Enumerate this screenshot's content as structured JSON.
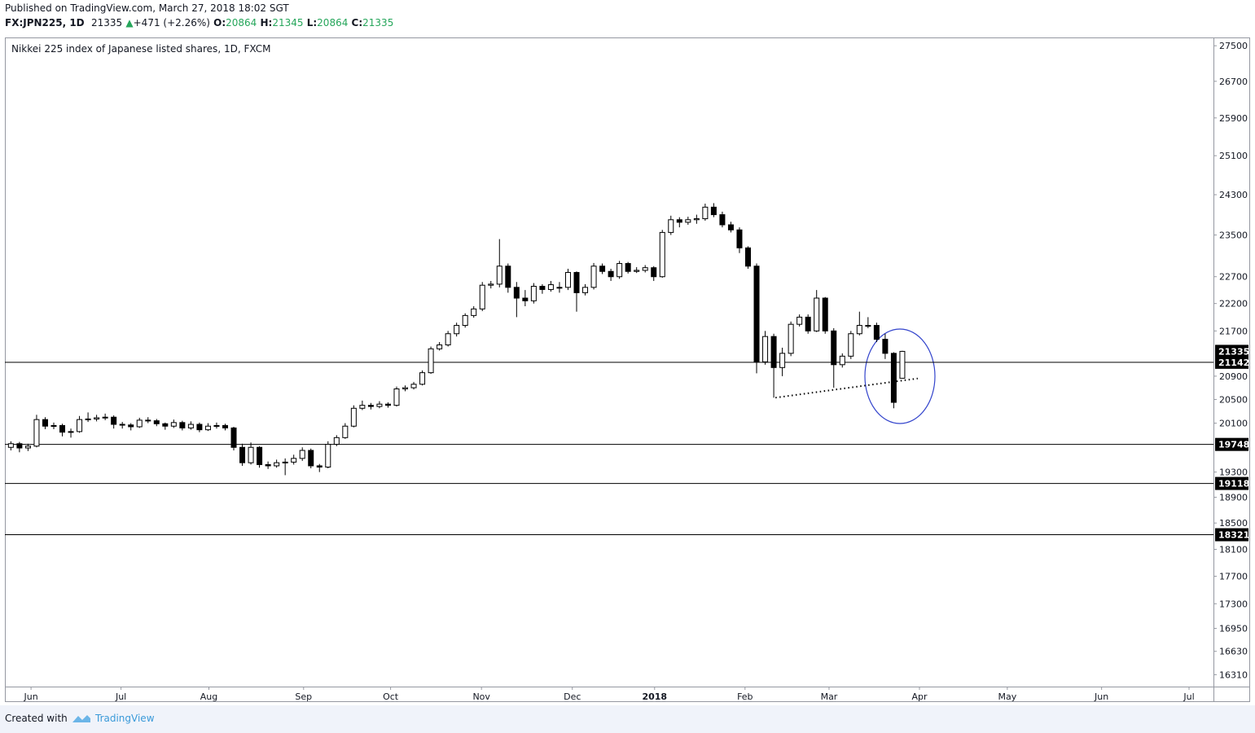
{
  "header": {
    "published": "Published on TradingView.com, March 27, 2018 18:02 SGT",
    "symbol": "FX:JPN225, 1D",
    "last": "21335",
    "arrow": "▲",
    "change": "+471 (+2.26%)",
    "o_label": "O:",
    "o": "20864",
    "h_label": "H:",
    "h": "21345",
    "l_label": "L:",
    "l": "20864",
    "c_label": "C:",
    "c": "21335"
  },
  "chart_data": {
    "type": "candlestick",
    "title": "Nikkei 225 index of Japanese listed shares, 1D, FXCM",
    "log_scale": true,
    "up_color": "#ffffff",
    "down_color": "#000000",
    "outline_color": "#000000",
    "xlim": [
      -0.4,
      281.6
    ],
    "ylim": [
      16150,
      27690
    ],
    "xticks": [
      {
        "value": 5.7,
        "label": "Jun"
      },
      {
        "value": 26.7,
        "label": "Jul"
      },
      {
        "value": 47.2,
        "label": "Aug"
      },
      {
        "value": 69.3,
        "label": "Sep"
      },
      {
        "value": 89.6,
        "label": "Oct"
      },
      {
        "value": 110.8,
        "label": "Nov"
      },
      {
        "value": 132,
        "label": "Dec"
      },
      {
        "value": 151.2,
        "label": "2018"
      },
      {
        "value": 172.3,
        "label": "Feb"
      },
      {
        "value": 191.9,
        "label": "Mar"
      },
      {
        "value": 213,
        "label": "Apr"
      },
      {
        "value": 233.5,
        "label": "May"
      },
      {
        "value": 255.5,
        "label": "Jun"
      },
      {
        "value": 275.9,
        "label": "Jul"
      }
    ],
    "yticks": [
      27500,
      26700,
      25900,
      25100,
      24300,
      23500,
      22700,
      22200,
      21700,
      20900,
      20500,
      20100,
      19300,
      18900,
      18500,
      18100,
      17700,
      17300,
      16950,
      16630,
      16310
    ],
    "levels": [
      21142,
      19748,
      19118,
      18321
    ],
    "last_price": 21335,
    "trendline": {
      "x": [
        179.4,
        212.6
      ],
      "y": [
        20530,
        20860
      ]
    },
    "x": [
      1,
      3,
      5,
      7,
      9,
      11,
      13,
      15,
      17,
      19,
      21,
      23,
      25,
      27,
      29,
      31,
      33,
      35,
      37,
      39,
      41,
      43,
      45,
      47,
      49,
      51,
      53,
      55,
      57,
      59,
      61,
      63,
      65,
      67,
      69,
      71,
      73,
      75,
      77,
      79,
      81,
      83,
      85,
      87,
      89,
      91,
      93,
      95,
      97,
      99,
      101,
      103,
      105,
      107,
      109,
      111,
      113,
      115,
      117,
      119,
      121,
      123,
      125,
      127,
      129,
      131,
      133,
      135,
      137,
      139,
      141,
      143,
      145,
      147,
      149,
      151,
      153,
      155,
      157,
      159,
      161,
      163,
      165,
      167,
      169,
      171,
      173,
      175,
      177,
      179,
      181,
      183,
      185,
      187,
      189,
      191,
      193,
      195,
      197,
      199,
      201,
      203,
      205,
      207,
      209
    ],
    "candles": [
      [
        19700,
        19800,
        19650,
        19760
      ],
      [
        19760,
        19790,
        19620,
        19690
      ],
      [
        19690,
        19760,
        19640,
        19720
      ],
      [
        19720,
        20240,
        19700,
        20160
      ],
      [
        20160,
        20200,
        20000,
        20050
      ],
      [
        20050,
        20110,
        20000,
        20060
      ],
      [
        20060,
        20090,
        19880,
        19950
      ],
      [
        19950,
        20010,
        19860,
        19960
      ],
      [
        19960,
        20220,
        19940,
        20160
      ],
      [
        20160,
        20280,
        20120,
        20170
      ],
      [
        20170,
        20240,
        20130,
        20190
      ],
      [
        20190,
        20260,
        20150,
        20200
      ],
      [
        20200,
        20230,
        20010,
        20080
      ],
      [
        20080,
        20120,
        20010,
        20070
      ],
      [
        20070,
        20100,
        19980,
        20040
      ],
      [
        20040,
        20190,
        20020,
        20150
      ],
      [
        20150,
        20200,
        20100,
        20140
      ],
      [
        20140,
        20170,
        20050,
        20090
      ],
      [
        20090,
        20110,
        19990,
        20050
      ],
      [
        20050,
        20160,
        20020,
        20110
      ],
      [
        20110,
        20140,
        19980,
        20020
      ],
      [
        20020,
        20130,
        19990,
        20080
      ],
      [
        20080,
        20110,
        19950,
        19990
      ],
      [
        19990,
        20100,
        19970,
        20050
      ],
      [
        20050,
        20110,
        20010,
        20060
      ],
      [
        20060,
        20090,
        19980,
        20020
      ],
      [
        20020,
        20040,
        19650,
        19700
      ],
      [
        19700,
        19760,
        19400,
        19450
      ],
      [
        19450,
        19780,
        19420,
        19700
      ],
      [
        19700,
        19720,
        19370,
        19420
      ],
      [
        19420,
        19470,
        19350,
        19400
      ],
      [
        19400,
        19500,
        19370,
        19450
      ],
      [
        19450,
        19520,
        19250,
        19460
      ],
      [
        19460,
        19580,
        19420,
        19520
      ],
      [
        19520,
        19700,
        19480,
        19650
      ],
      [
        19650,
        19680,
        19360,
        19400
      ],
      [
        19400,
        19430,
        19300,
        19380
      ],
      [
        19380,
        19800,
        19360,
        19750
      ],
      [
        19750,
        19900,
        19720,
        19860
      ],
      [
        19860,
        20100,
        19840,
        20050
      ],
      [
        20050,
        20400,
        20030,
        20350
      ],
      [
        20350,
        20480,
        20320,
        20400
      ],
      [
        20400,
        20440,
        20330,
        20380
      ],
      [
        20380,
        20470,
        20350,
        20420
      ],
      [
        20420,
        20450,
        20360,
        20400
      ],
      [
        20400,
        20720,
        20380,
        20680
      ],
      [
        20680,
        20740,
        20640,
        20700
      ],
      [
        20700,
        20800,
        20670,
        20760
      ],
      [
        20760,
        21000,
        20740,
        20960
      ],
      [
        20960,
        21420,
        20940,
        21380
      ],
      [
        21380,
        21500,
        21350,
        21450
      ],
      [
        21450,
        21700,
        21420,
        21650
      ],
      [
        21650,
        21850,
        21600,
        21800
      ],
      [
        21800,
        22020,
        21760,
        21980
      ],
      [
        21980,
        22150,
        21940,
        22100
      ],
      [
        22100,
        22600,
        22060,
        22540
      ],
      [
        22540,
        22620,
        22480,
        22560
      ],
      [
        22560,
        23420,
        22500,
        22900
      ],
      [
        22900,
        22950,
        22400,
        22500
      ],
      [
        22500,
        22600,
        21950,
        22300
      ],
      [
        22300,
        22450,
        22150,
        22250
      ],
      [
        22250,
        22580,
        22200,
        22520
      ],
      [
        22520,
        22560,
        22380,
        22460
      ],
      [
        22460,
        22620,
        22420,
        22550
      ],
      [
        22500,
        22600,
        22400,
        22500
      ],
      [
        22500,
        22850,
        22450,
        22780
      ],
      [
        22780,
        22800,
        22050,
        22400
      ],
      [
        22400,
        22560,
        22350,
        22500
      ],
      [
        22500,
        22960,
        22460,
        22900
      ],
      [
        22900,
        22950,
        22750,
        22800
      ],
      [
        22800,
        22850,
        22620,
        22700
      ],
      [
        22700,
        23000,
        22660,
        22950
      ],
      [
        22950,
        22980,
        22760,
        22800
      ],
      [
        22800,
        22880,
        22770,
        22820
      ],
      [
        22820,
        22920,
        22780,
        22870
      ],
      [
        22870,
        22900,
        22620,
        22700
      ],
      [
        22700,
        23600,
        22680,
        23550
      ],
      [
        23550,
        23880,
        23500,
        23800
      ],
      [
        23800,
        23850,
        23650,
        23750
      ],
      [
        23750,
        23860,
        23700,
        23800
      ],
      [
        23800,
        23900,
        23720,
        23820
      ],
      [
        23820,
        24120,
        23780,
        24050
      ],
      [
        24050,
        24130,
        23850,
        23900
      ],
      [
        23900,
        23960,
        23650,
        23700
      ],
      [
        23700,
        23760,
        23550,
        23600
      ],
      [
        23600,
        23650,
        23150,
        23250
      ],
      [
        23250,
        23280,
        22850,
        22900
      ],
      [
        22900,
        22950,
        20950,
        21150
      ],
      [
        21150,
        21700,
        21100,
        21600
      ],
      [
        21600,
        21650,
        20530,
        21050
      ],
      [
        21050,
        21400,
        20900,
        21300
      ],
      [
        21300,
        21870,
        21250,
        21820
      ],
      [
        21820,
        22000,
        21780,
        21950
      ],
      [
        21950,
        22000,
        21650,
        21700
      ],
      [
        21700,
        22450,
        21680,
        22300
      ],
      [
        22300,
        22320,
        21650,
        21700
      ],
      [
        21700,
        21750,
        20700,
        21100
      ],
      [
        21100,
        21300,
        21050,
        21250
      ],
      [
        21250,
        21700,
        21200,
        21650
      ],
      [
        21650,
        22050,
        21620,
        21800
      ],
      [
        21800,
        21950,
        21750,
        21800
      ],
      [
        21800,
        21850,
        21500,
        21550
      ],
      [
        21550,
        21650,
        21200,
        21300
      ],
      [
        21300,
        21320,
        20350,
        20450
      ],
      [
        20864,
        21345,
        20864,
        21335
      ]
    ]
  },
  "footer": {
    "created": "Created with",
    "brand": "TradingView"
  }
}
